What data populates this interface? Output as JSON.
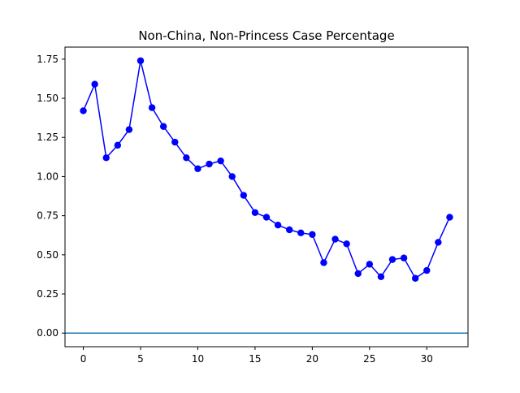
{
  "chart_data": {
    "type": "line",
    "title": "Non-China, Non-Princess Case Percentage",
    "xlabel": "",
    "ylabel": "",
    "xlim": [
      -1.6,
      33.6
    ],
    "ylim": [
      -0.087,
      1.827
    ],
    "x_ticks": [
      0,
      5,
      10,
      15,
      20,
      25,
      30
    ],
    "x_tick_labels": [
      "0",
      "5",
      "10",
      "15",
      "20",
      "25",
      "30"
    ],
    "y_ticks": [
      0.0,
      0.25,
      0.5,
      0.75,
      1.0,
      1.25,
      1.5,
      1.75
    ],
    "y_tick_labels": [
      "0.00",
      "0.25",
      "0.50",
      "0.75",
      "1.00",
      "1.25",
      "1.50",
      "1.75"
    ],
    "grid": false,
    "legend": "none",
    "series": [
      {
        "color": "#0000ff",
        "marker": "circle",
        "x": [
          0,
          1,
          2,
          3,
          4,
          5,
          6,
          7,
          8,
          9,
          10,
          11,
          12,
          13,
          14,
          15,
          16,
          17,
          18,
          19,
          20,
          21,
          22,
          23,
          24,
          25,
          26,
          27,
          28,
          29,
          30,
          31,
          32
        ],
        "values": [
          1.42,
          1.59,
          1.12,
          1.2,
          1.3,
          1.74,
          1.44,
          1.32,
          1.22,
          1.12,
          1.05,
          1.08,
          1.1,
          1.0,
          0.88,
          0.77,
          0.74,
          0.69,
          0.66,
          0.64,
          0.63,
          0.45,
          0.6,
          0.57,
          0.38,
          0.44,
          0.36,
          0.47,
          0.48,
          0.35,
          0.4,
          0.58,
          0.74
        ]
      }
    ],
    "reference_lines": [
      {
        "axis": "y",
        "value": 0.0,
        "color": "#1f77b4"
      }
    ]
  }
}
